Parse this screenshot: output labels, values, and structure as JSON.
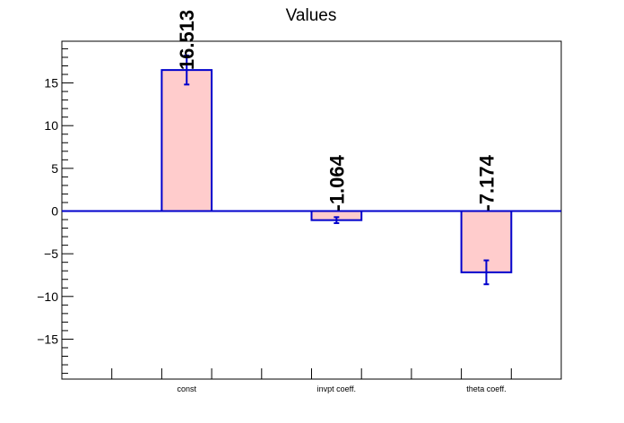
{
  "chart_data": {
    "type": "bar",
    "title": "Values",
    "xlabel": "",
    "ylabel": "",
    "categories": [
      "const",
      "invpt coeff.",
      "theta coeff."
    ],
    "values": [
      16.513,
      -1.064,
      -7.174
    ],
    "errors": [
      1.7,
      0.35,
      1.4
    ],
    "value_labels": [
      "16.513",
      "-1.064",
      "-7.174"
    ],
    "ylim": [
      -19.7,
      19.7
    ],
    "yticks": [
      -15,
      -10,
      -5,
      0,
      5,
      10,
      15
    ],
    "ytick_labels": [
      "−15",
      "−10",
      "−5",
      "0",
      "5",
      "10",
      "15"
    ],
    "grid": false,
    "colors": {
      "bar_fill": "#ffcccc",
      "bar_edge": "#0000cc",
      "zero_line": "#0000cc",
      "axis": "#000000"
    }
  }
}
